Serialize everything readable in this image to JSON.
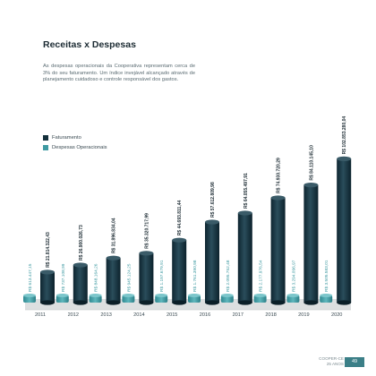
{
  "page": {
    "title": "Receitas x Despesas",
    "paragraph": "As despesas operacionais da Cooperativa representam cerca de 3% do seu faturamento. Um índice invejável alcançado através de planejamento cuidadoso e controle responsável dos gastos.",
    "footer": {
      "line1": "COOPER-CE",
      "line2": "25 ANOS",
      "page_number": "49"
    }
  },
  "colors": {
    "faturamento": "#14303b",
    "despesas": "#3f9aa2",
    "baseline_band": "#dcdfe0",
    "text": "#1c2b33"
  },
  "chart_data": {
    "type": "bar",
    "categories": [
      "2011",
      "2012",
      "2013",
      "2014",
      "2015",
      "2016",
      "2017",
      "2018",
      "2019",
      "2020"
    ],
    "series": [
      {
        "name": "Faturamento",
        "values": [
          21814322.43,
          26900026.73,
          31896834.04,
          35320717.99,
          44693811.44,
          57612809.98,
          64055497.91,
          74930720.29,
          84110145.1,
          102853280.04
        ],
        "labels": [
          "R$ 21.814.322,43",
          "R$ 26.900.026,73",
          "R$ 31.896.834,04",
          "R$ 35.320.717,99",
          "R$ 44.693.811,44",
          "R$ 57.612.809,98",
          "R$ 64.055.497,91",
          "R$ 74.930.720,29",
          "R$ 84.110.145,10",
          "R$ 102.853.280,04"
        ]
      },
      {
        "name": "Despesas Operacionais",
        "values": [
          613447.15,
          737108.99,
          848164.26,
          945124.25,
          1197679.91,
          1761390.98,
          2095752.48,
          2177976.54,
          3294096.97,
          3505583.01
        ],
        "labels": [
          "R$ 613.447,15",
          "R$ 737.108,99",
          "R$ 848.164,26",
          "R$ 945.124,25",
          "R$ 1.197.679,91",
          "R$ 1.761.390,98",
          "R$ 2.095.752,48",
          "R$ 2.177.976,54",
          "R$ 3.294.096,97",
          "R$ 3.505.583,01"
        ]
      }
    ],
    "title": "",
    "xlabel": "",
    "ylabel": "",
    "ylim": [
      0,
      105000000
    ],
    "grid": false,
    "legend": "top-left"
  }
}
